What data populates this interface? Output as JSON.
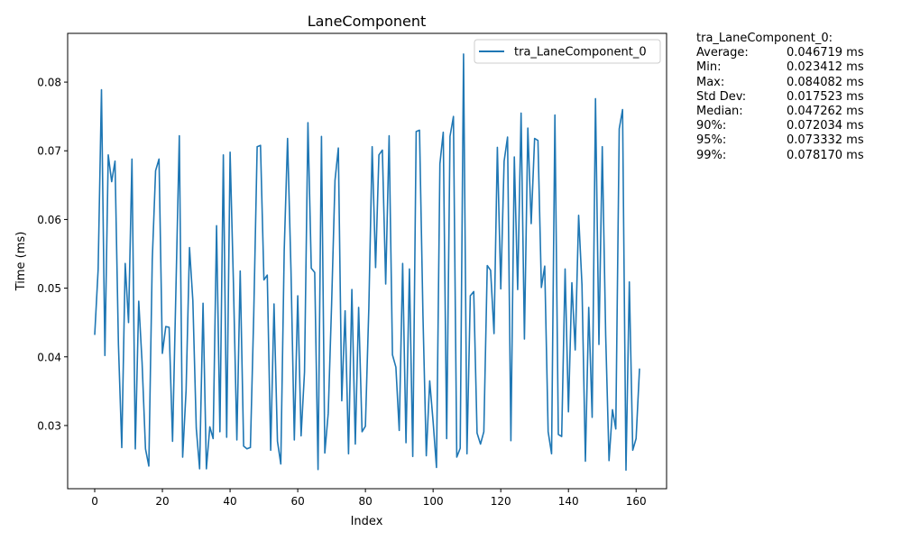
{
  "chart_data": {
    "type": "line",
    "title": "LaneComponent",
    "xlabel": "Index",
    "ylabel": "Time (ms)",
    "xlim": [
      -8,
      169
    ],
    "ylim": [
      0.0208,
      0.0871
    ],
    "xticks": [
      0,
      20,
      40,
      60,
      80,
      100,
      120,
      140,
      160
    ],
    "yticks": [
      0.03,
      0.04,
      0.05,
      0.06,
      0.07,
      0.08
    ],
    "legend_position": "top-right",
    "series": [
      {
        "name": "tra_LaneComponent_0",
        "color": "#1f77b4",
        "x": [
          0,
          1,
          2,
          3,
          4,
          5,
          6,
          7,
          8,
          9,
          10,
          11,
          12,
          13,
          14,
          15,
          16,
          17,
          18,
          19,
          20,
          21,
          22,
          23,
          24,
          25,
          26,
          27,
          28,
          29,
          30,
          31,
          32,
          33,
          34,
          35,
          36,
          37,
          38,
          39,
          40,
          41,
          42,
          43,
          44,
          45,
          46,
          47,
          48,
          49,
          50,
          51,
          52,
          53,
          54,
          55,
          56,
          57,
          58,
          59,
          60,
          61,
          62,
          63,
          64,
          65,
          66,
          67,
          68,
          69,
          70,
          71,
          72,
          73,
          74,
          75,
          76,
          77,
          78,
          79,
          80,
          81,
          82,
          83,
          84,
          85,
          86,
          87,
          88,
          89,
          90,
          91,
          92,
          93,
          94,
          95,
          96,
          97,
          98,
          99,
          100,
          101,
          102,
          103,
          104,
          105,
          106,
          107,
          108,
          109,
          110,
          111,
          112,
          113,
          114,
          115,
          116,
          117,
          118,
          119,
          120,
          121,
          122,
          123,
          124,
          125,
          126,
          127,
          128,
          129,
          130,
          131,
          132,
          133,
          134,
          135,
          136,
          137,
          138,
          139,
          140,
          141,
          142,
          143,
          144,
          145,
          146,
          147,
          148,
          149,
          150,
          151,
          152,
          153,
          154,
          155,
          156,
          157,
          158,
          159,
          160,
          161
        ],
        "y": [
          0.0432,
          0.0527,
          0.0789,
          0.0402,
          0.0694,
          0.0655,
          0.0685,
          0.0418,
          0.0268,
          0.0536,
          0.045,
          0.0688,
          0.0266,
          0.0481,
          0.0392,
          0.0266,
          0.0241,
          0.0541,
          0.0671,
          0.0688,
          0.0405,
          0.0444,
          0.0443,
          0.0277,
          0.0496,
          0.0722,
          0.0254,
          0.0351,
          0.0559,
          0.0482,
          0.0296,
          0.0237,
          0.0478,
          0.0237,
          0.0298,
          0.0281,
          0.0591,
          0.0291,
          0.0694,
          0.0283,
          0.0698,
          0.0507,
          0.0279,
          0.0525,
          0.027,
          0.0266,
          0.0268,
          0.0461,
          0.0706,
          0.0708,
          0.0512,
          0.0519,
          0.0264,
          0.0477,
          0.0277,
          0.0244,
          0.0555,
          0.0718,
          0.0526,
          0.0279,
          0.0489,
          0.0285,
          0.0378,
          0.0741,
          0.0529,
          0.0523,
          0.0236,
          0.0721,
          0.026,
          0.0318,
          0.0475,
          0.0657,
          0.0704,
          0.0336,
          0.0467,
          0.0259,
          0.0498,
          0.0273,
          0.0472,
          0.0291,
          0.0299,
          0.0471,
          0.0706,
          0.053,
          0.0694,
          0.0701,
          0.0506,
          0.0722,
          0.0403,
          0.0385,
          0.0293,
          0.0536,
          0.0275,
          0.0528,
          0.0255,
          0.0728,
          0.073,
          0.0461,
          0.0256,
          0.0365,
          0.0305,
          0.0239,
          0.0681,
          0.0727,
          0.0281,
          0.0721,
          0.075,
          0.0254,
          0.0267,
          0.0841,
          0.0259,
          0.0489,
          0.0495,
          0.0289,
          0.0273,
          0.0291,
          0.0533,
          0.0526,
          0.0434,
          0.0705,
          0.0499,
          0.0685,
          0.072,
          0.0278,
          0.0691,
          0.0498,
          0.0755,
          0.0426,
          0.0733,
          0.0594,
          0.0718,
          0.0715,
          0.0501,
          0.0532,
          0.0291,
          0.0259,
          0.0752,
          0.0287,
          0.0284,
          0.0528,
          0.032,
          0.0508,
          0.041,
          0.0606,
          0.0505,
          0.0248,
          0.0472,
          0.0312,
          0.0776,
          0.0418,
          0.0706,
          0.0431,
          0.0249,
          0.0323,
          0.0295,
          0.0732,
          0.076,
          0.0235,
          0.0509,
          0.0264,
          0.0281,
          0.0383
        ]
      }
    ]
  },
  "stats": {
    "header": "tra_LaneComponent_0:",
    "rows": [
      {
        "label": "Average:",
        "value": "0.046719 ms"
      },
      {
        "label": "Min:",
        "value": "0.023412 ms"
      },
      {
        "label": "Max:",
        "value": "0.084082 ms"
      },
      {
        "label": "Std Dev:",
        "value": "0.017523 ms"
      },
      {
        "label": "Median:",
        "value": "0.047262 ms"
      },
      {
        "label": "90%:",
        "value": "0.072034 ms"
      },
      {
        "label": "95%:",
        "value": "0.073332 ms"
      },
      {
        "label": "99%:",
        "value": "0.078170 ms"
      }
    ]
  }
}
